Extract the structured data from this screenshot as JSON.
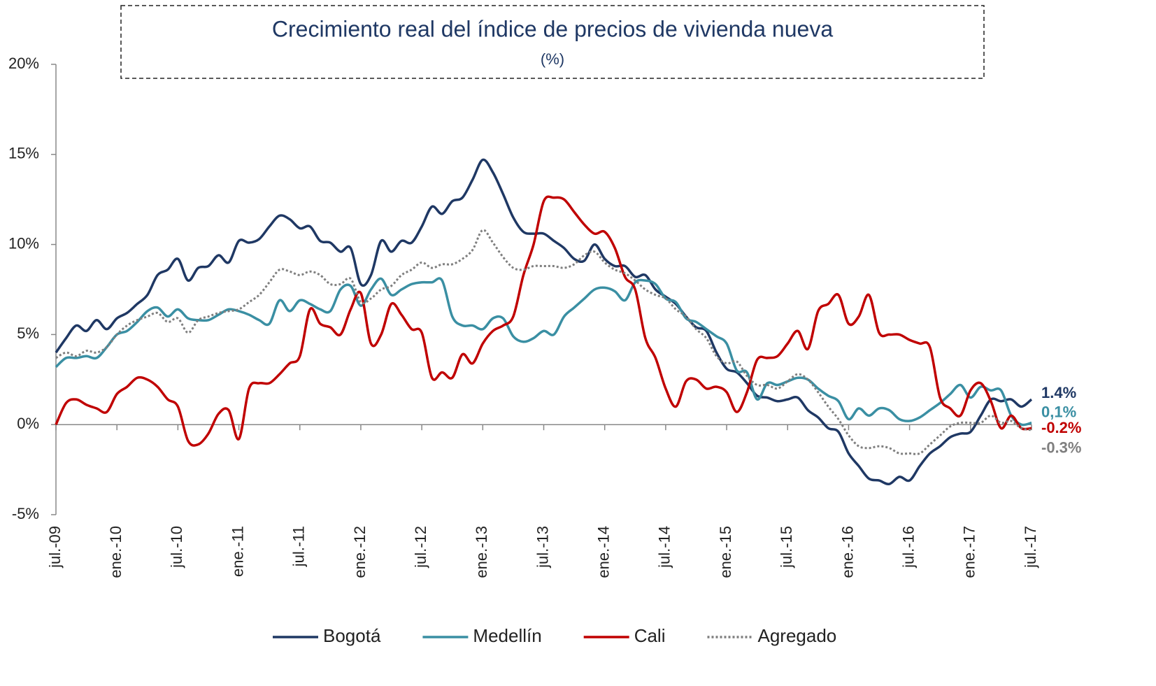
{
  "chart_data": {
    "type": "line",
    "title": "Crecimiento real del índice de precios de vivienda nueva",
    "subtitle": "(%)",
    "categories": [
      "jul.-09",
      null,
      null,
      null,
      null,
      null,
      "ene.-10",
      null,
      null,
      null,
      null,
      null,
      "jul.-10",
      null,
      null,
      null,
      null,
      null,
      "ene.-11",
      null,
      null,
      null,
      null,
      null,
      "jul.-11",
      null,
      null,
      null,
      null,
      null,
      "ene.-12",
      null,
      null,
      null,
      null,
      null,
      "jul.-12",
      null,
      null,
      null,
      null,
      null,
      "ene.-13",
      null,
      null,
      null,
      null,
      null,
      "jul.-13",
      null,
      null,
      null,
      null,
      null,
      "ene.-14",
      null,
      null,
      null,
      null,
      null,
      "jul.-14",
      null,
      null,
      null,
      null,
      null,
      "ene.-15",
      null,
      null,
      null,
      null,
      null,
      "jul.-15",
      null,
      null,
      null,
      null,
      null,
      "ene.-16",
      null,
      null,
      null,
      null,
      null,
      "jul.-16",
      null,
      null,
      null,
      null,
      null,
      "ene.-17",
      null,
      null,
      null,
      null,
      null,
      "jul.-17"
    ],
    "ylim": [
      -5,
      20
    ],
    "yticks": [
      {
        "value": -5,
        "label": "-5%"
      },
      {
        "value": 0,
        "label": "0%"
      },
      {
        "value": 5,
        "label": "5%"
      },
      {
        "value": 10,
        "label": "10%"
      },
      {
        "value": 15,
        "label": "15%"
      },
      {
        "value": 20,
        "label": "20%"
      }
    ],
    "series": [
      {
        "name": "Bogotá",
        "color": "#1f3864",
        "dash": false,
        "values": [
          4.0,
          4.8,
          5.5,
          5.2,
          5.8,
          5.3,
          5.9,
          6.2,
          6.7,
          7.2,
          8.3,
          8.6,
          9.2,
          8.0,
          8.7,
          8.8,
          9.4,
          9.0,
          10.2,
          10.1,
          10.3,
          11.0,
          11.6,
          11.4,
          10.9,
          11.0,
          10.2,
          10.1,
          9.6,
          9.8,
          7.8,
          8.3,
          10.2,
          9.6,
          10.2,
          10.1,
          11.0,
          12.1,
          11.7,
          12.4,
          12.6,
          13.6,
          14.7,
          14.0,
          12.8,
          11.5,
          10.7,
          10.6,
          10.6,
          10.2,
          9.8,
          9.2,
          9.1,
          10.0,
          9.2,
          8.8,
          8.8,
          8.2,
          8.3,
          7.5,
          7.1,
          6.7,
          6.0,
          5.4,
          5.2,
          4.0,
          3.1,
          2.9,
          2.3,
          1.6,
          1.5,
          1.3,
          1.4,
          1.5,
          0.8,
          0.4,
          -0.2,
          -0.4,
          -1.6,
          -2.3,
          -3.0,
          -3.1,
          -3.3,
          -2.9,
          -3.1,
          -2.3,
          -1.6,
          -1.2,
          -0.7,
          -0.5,
          -0.4,
          0.5,
          1.4,
          1.3,
          1.4,
          1.0,
          1.4
        ],
        "value_labels": [
          null,
          null,
          null,
          null,
          null,
          null,
          null,
          null,
          null,
          null,
          null,
          null,
          null,
          null,
          null,
          null,
          null,
          null,
          null,
          null,
          null,
          null,
          null,
          null,
          null,
          null,
          null,
          null,
          null,
          null,
          null,
          null,
          null,
          null,
          null,
          null,
          null,
          null,
          null,
          null,
          null,
          null,
          null,
          null,
          null,
          null,
          null,
          null,
          null,
          null,
          null,
          null,
          null,
          null,
          null,
          null,
          null,
          null,
          null,
          null,
          null,
          null,
          null,
          null,
          null,
          null,
          null,
          null,
          null,
          null,
          null,
          null,
          null,
          null,
          null,
          null,
          null,
          null,
          null,
          null,
          null,
          null,
          null,
          null,
          null,
          null,
          null,
          null,
          null,
          null,
          null,
          null,
          null,
          null,
          null,
          null,
          "1.4%"
        ]
      },
      {
        "name": "Medellín",
        "color": "#3a8fa3",
        "dash": false,
        "values": [
          3.2,
          3.7,
          3.7,
          3.8,
          3.7,
          4.3,
          5.0,
          5.2,
          5.7,
          6.3,
          6.5,
          6.0,
          6.4,
          5.9,
          5.8,
          5.8,
          6.1,
          6.4,
          6.3,
          6.1,
          5.8,
          5.6,
          6.9,
          6.3,
          6.9,
          6.7,
          6.4,
          6.3,
          7.5,
          7.7,
          6.6,
          7.5,
          8.1,
          7.2,
          7.5,
          7.8,
          7.9,
          7.9,
          8.0,
          6.0,
          5.5,
          5.5,
          5.3,
          5.9,
          5.9,
          4.9,
          4.6,
          4.8,
          5.2,
          5.0,
          6.0,
          6.5,
          7.0,
          7.5,
          7.6,
          7.4,
          6.9,
          7.9,
          8.0,
          7.8,
          7.0,
          6.8,
          5.9,
          5.7,
          5.3,
          4.9,
          4.5,
          3.0,
          2.9,
          1.4,
          2.3,
          2.2,
          2.4,
          2.6,
          2.5,
          2.0,
          1.6,
          1.3,
          0.3,
          0.9,
          0.5,
          0.9,
          0.8,
          0.3,
          0.2,
          0.4,
          0.8,
          1.2,
          1.7,
          2.2,
          1.5,
          2.1,
          1.9,
          1.9,
          0.5,
          0.0,
          0.1
        ],
        "value_labels": [
          null,
          null,
          null,
          null,
          null,
          null,
          null,
          null,
          null,
          null,
          null,
          null,
          null,
          null,
          null,
          null,
          null,
          null,
          null,
          null,
          null,
          null,
          null,
          null,
          null,
          null,
          null,
          null,
          null,
          null,
          null,
          null,
          null,
          null,
          null,
          null,
          null,
          null,
          null,
          null,
          null,
          null,
          null,
          null,
          null,
          null,
          null,
          null,
          null,
          null,
          null,
          null,
          null,
          null,
          null,
          null,
          null,
          null,
          null,
          null,
          null,
          null,
          null,
          null,
          null,
          null,
          null,
          null,
          null,
          null,
          null,
          null,
          null,
          null,
          null,
          null,
          null,
          null,
          null,
          null,
          null,
          null,
          null,
          null,
          null,
          null,
          null,
          null,
          null,
          null,
          null,
          null,
          null,
          null,
          null,
          null,
          "0,1%"
        ]
      },
      {
        "name": "Cali",
        "color": "#c00000",
        "dash": false,
        "values": [
          0.0,
          1.2,
          1.4,
          1.1,
          0.9,
          0.7,
          1.7,
          2.1,
          2.6,
          2.5,
          2.1,
          1.4,
          1.0,
          -0.9,
          -1.1,
          -0.5,
          0.6,
          0.8,
          -0.8,
          2.0,
          2.3,
          2.3,
          2.8,
          3.4,
          3.8,
          6.4,
          5.6,
          5.4,
          5.0,
          6.4,
          7.3,
          4.5,
          5.0,
          6.7,
          6.1,
          5.3,
          5.1,
          2.6,
          2.9,
          2.6,
          3.9,
          3.4,
          4.5,
          5.2,
          5.5,
          6.0,
          8.3,
          10.0,
          12.4,
          12.6,
          12.5,
          11.8,
          11.1,
          10.6,
          10.7,
          9.8,
          8.2,
          7.5,
          4.8,
          3.7,
          2.0,
          1.0,
          2.4,
          2.5,
          2.0,
          2.1,
          1.8,
          0.7,
          1.8,
          3.6,
          3.7,
          3.8,
          4.5,
          5.2,
          4.2,
          6.3,
          6.7,
          7.2,
          5.6,
          6.0,
          7.2,
          5.1,
          5.0,
          5.0,
          4.7,
          4.5,
          4.3,
          1.5,
          0.9,
          0.5,
          1.9,
          2.3,
          1.3,
          -0.2,
          0.5,
          -0.2,
          -0.2
        ],
        "value_labels": [
          null,
          null,
          null,
          null,
          null,
          null,
          null,
          null,
          null,
          null,
          null,
          null,
          null,
          null,
          null,
          null,
          null,
          null,
          null,
          null,
          null,
          null,
          null,
          null,
          null,
          null,
          null,
          null,
          null,
          null,
          null,
          null,
          null,
          null,
          null,
          null,
          null,
          null,
          null,
          null,
          null,
          null,
          null,
          null,
          null,
          null,
          null,
          null,
          null,
          null,
          null,
          null,
          null,
          null,
          null,
          null,
          null,
          null,
          null,
          null,
          null,
          null,
          null,
          null,
          null,
          null,
          null,
          null,
          null,
          null,
          null,
          null,
          null,
          null,
          null,
          null,
          null,
          null,
          null,
          null,
          null,
          null,
          null,
          null,
          null,
          null,
          null,
          null,
          null,
          null,
          null,
          null,
          null,
          null,
          null,
          null,
          "-0.2%"
        ]
      },
      {
        "name": "Agregado",
        "color": "#7f7f7f",
        "dash": true,
        "values": [
          3.7,
          4.0,
          3.8,
          4.1,
          4.0,
          4.3,
          5.0,
          5.5,
          5.8,
          6.0,
          6.2,
          5.7,
          5.9,
          5.1,
          5.8,
          6.0,
          6.2,
          6.3,
          6.4,
          6.8,
          7.2,
          7.9,
          8.6,
          8.5,
          8.3,
          8.5,
          8.3,
          7.8,
          7.8,
          8.1,
          6.8,
          7.0,
          7.5,
          7.7,
          8.3,
          8.6,
          9.0,
          8.7,
          8.9,
          8.9,
          9.2,
          9.7,
          10.8,
          10.1,
          9.3,
          8.7,
          8.6,
          8.8,
          8.8,
          8.8,
          8.7,
          8.9,
          9.4,
          9.6,
          9.0,
          8.6,
          8.4,
          8.0,
          7.5,
          7.2,
          7.0,
          6.4,
          6.0,
          5.3,
          4.8,
          3.8,
          3.4,
          3.5,
          2.7,
          2.2,
          2.2,
          2.0,
          2.4,
          2.8,
          2.5,
          1.8,
          1.0,
          0.3,
          -0.6,
          -1.2,
          -1.3,
          -1.2,
          -1.3,
          -1.6,
          -1.6,
          -1.6,
          -1.1,
          -0.6,
          -0.1,
          0.1,
          0.1,
          0.1,
          0.5,
          0.1,
          0.2,
          -0.2,
          -0.3
        ],
        "value_labels": [
          null,
          null,
          null,
          null,
          null,
          null,
          null,
          null,
          null,
          null,
          null,
          null,
          null,
          null,
          null,
          null,
          null,
          null,
          null,
          null,
          null,
          null,
          null,
          null,
          null,
          null,
          null,
          null,
          null,
          null,
          null,
          null,
          null,
          null,
          null,
          null,
          null,
          null,
          null,
          null,
          null,
          null,
          null,
          null,
          null,
          null,
          null,
          null,
          null,
          null,
          null,
          null,
          null,
          null,
          null,
          null,
          null,
          null,
          null,
          null,
          null,
          null,
          null,
          null,
          null,
          null,
          null,
          null,
          null,
          null,
          null,
          null,
          null,
          null,
          null,
          null,
          null,
          null,
          null,
          null,
          null,
          null,
          null,
          null,
          null,
          null,
          null,
          null,
          null,
          null,
          null,
          null,
          null,
          null,
          null,
          null,
          "-0.3%"
        ]
      }
    ],
    "legend": "bottom"
  }
}
